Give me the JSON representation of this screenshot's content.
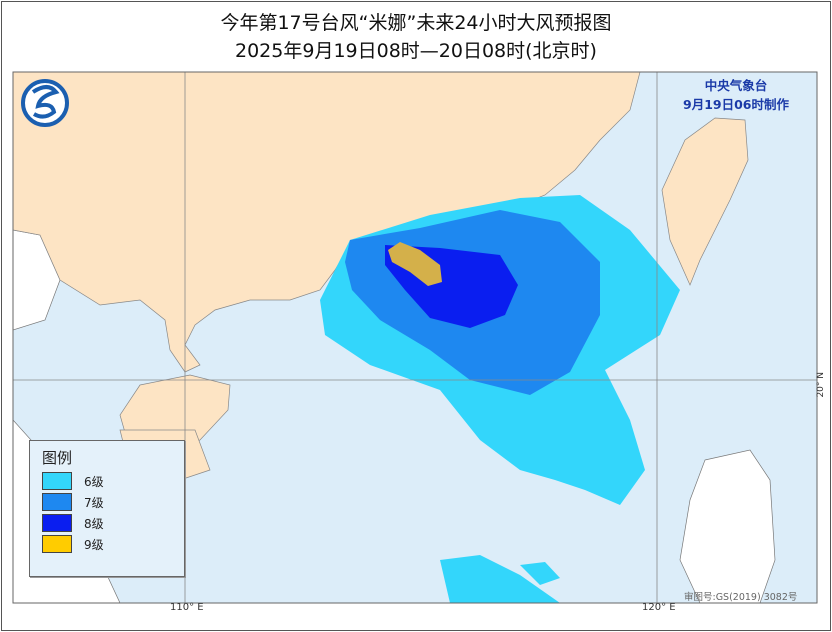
{
  "header": {
    "title": "今年第17号台风“米娜”未来24小时大风预报图",
    "subtitle": "2025年9月19日08时—20日08时(北京时)"
  },
  "issuer": {
    "name": "中央气象台",
    "issued": "9月19日06时制作"
  },
  "legend": {
    "title": "图例",
    "items": [
      {
        "label": "6级",
        "color": "#33d6fb"
      },
      {
        "label": "7级",
        "color": "#1e88f0"
      },
      {
        "label": "8级",
        "color": "#0a1ef0"
      },
      {
        "label": "9级",
        "color": "#ffcc00"
      }
    ]
  },
  "axes": {
    "lon_labels": [
      "110° E",
      "120° E"
    ],
    "lat_label": "20° N"
  },
  "credit": "审图号:GS(2019) 3082号",
  "colors": {
    "sea": "#dcedf9",
    "china_land": "#fde4c4",
    "other_land": "#ffffff",
    "level9_map": "#d4b04a"
  }
}
